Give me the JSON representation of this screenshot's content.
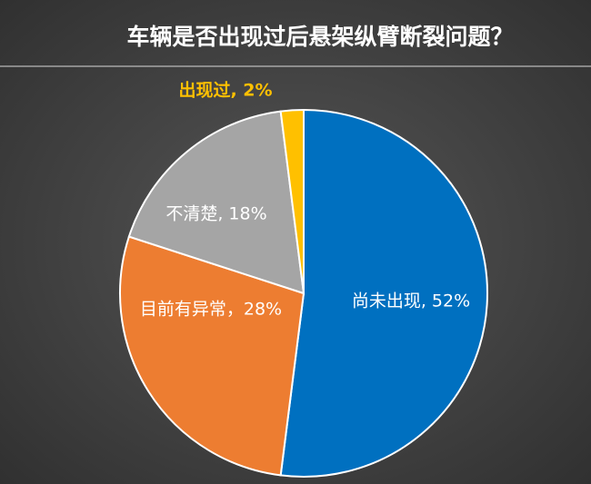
{
  "chart_data": {
    "type": "pie",
    "title": "车辆是否出现过后悬架纵臂断裂问题？",
    "values": [
      52,
      28,
      18,
      2
    ],
    "value_labels": [
      "尚未出现, 52%",
      "目前有异常，28%",
      "不清楚, 18%",
      "出现过, 2%"
    ],
    "colors": [
      "#0070c0",
      "#ed7d31",
      "#a5a5a5",
      "#ffc000"
    ]
  }
}
